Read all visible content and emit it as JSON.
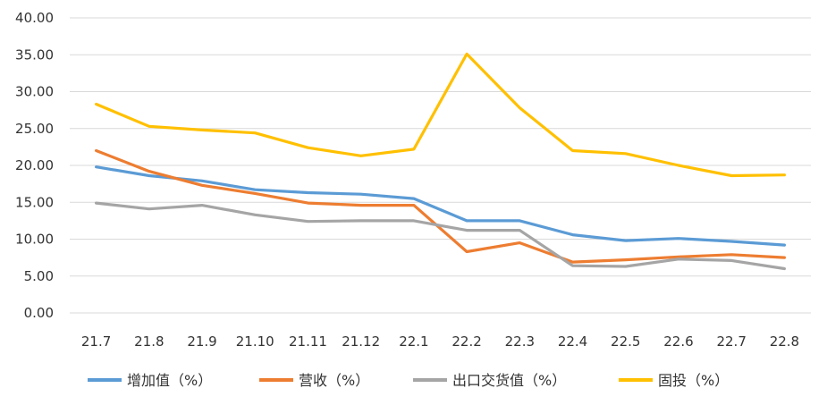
{
  "chart_data": {
    "type": "line",
    "categories": [
      "21.7",
      "21.8",
      "21.9",
      "21.10",
      "21.11",
      "21.12",
      "22.1",
      "22.2",
      "22.3",
      "22.4",
      "22.5",
      "22.6",
      "22.7",
      "22.8"
    ],
    "ylim": [
      0,
      40
    ],
    "yticks": [
      "0.00",
      "5.00",
      "10.00",
      "15.00",
      "20.00",
      "25.00",
      "30.00",
      "35.00",
      "40.00"
    ],
    "grid": true,
    "legend_position": "bottom",
    "series": [
      {
        "name": "增加值（%）",
        "color": "#5b9bd5",
        "values": [
          19.8,
          18.6,
          17.9,
          16.7,
          16.3,
          16.1,
          15.5,
          12.5,
          12.5,
          10.6,
          9.8,
          10.1,
          9.7,
          9.2
        ]
      },
      {
        "name": "营收（%）",
        "color": "#ed7d31",
        "values": [
          22.0,
          19.2,
          17.3,
          16.2,
          14.9,
          14.6,
          14.6,
          8.3,
          9.5,
          6.9,
          7.2,
          7.6,
          7.9,
          7.5
        ]
      },
      {
        "name": "出口交货值（%）",
        "color": "#a5a5a5",
        "values": [
          14.9,
          14.1,
          14.6,
          13.3,
          12.4,
          12.5,
          12.5,
          11.2,
          11.2,
          6.4,
          6.3,
          7.3,
          7.1,
          6.0
        ]
      },
      {
        "name": "固投（%）",
        "color": "#ffc000",
        "values": [
          28.3,
          25.3,
          24.8,
          24.4,
          22.4,
          21.3,
          22.2,
          35.1,
          27.8,
          22.0,
          21.6,
          20.0,
          18.6,
          18.7
        ]
      }
    ]
  }
}
